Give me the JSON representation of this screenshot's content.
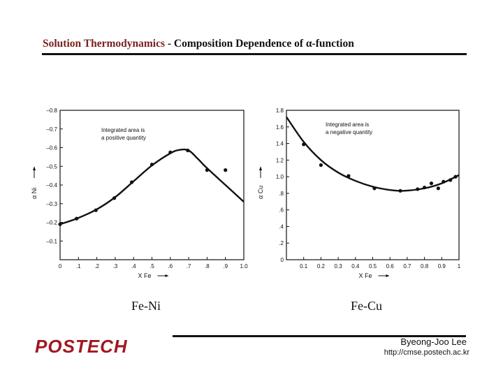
{
  "header": {
    "title_main": "Solution Thermodynamics",
    "title_rest": " - Composition Dependence of  α-function"
  },
  "chart_data": [
    {
      "type": "scatter",
      "caption": "Fe-Ni",
      "annotation": [
        "Integrated area is",
        "a positive quantity"
      ],
      "ylabel": "α Ni",
      "xlabel": "X Fe",
      "xlim": [
        0,
        1.0
      ],
      "ylim": [
        -0.8,
        0
      ],
      "xticks": [
        "0",
        ".1",
        ".2",
        ".3",
        ".4",
        ".5",
        ".6",
        ".7",
        ".8",
        ".9",
        "1.0"
      ],
      "yticks": [
        "–0.8",
        "–0.7",
        "–0.6",
        "–0.5",
        "–0.4",
        "–0.3",
        "–0.2",
        "–0.1"
      ],
      "points": [
        [
          0.0,
          -0.19
        ],
        [
          0.09,
          -0.22
        ],
        [
          0.195,
          -0.265
        ],
        [
          0.295,
          -0.33
        ],
        [
          0.39,
          -0.415
        ],
        [
          0.5,
          -0.51
        ],
        [
          0.6,
          -0.575
        ],
        [
          0.695,
          -0.585
        ],
        [
          0.8,
          -0.48
        ],
        [
          0.9,
          -0.48
        ]
      ],
      "curve": [
        [
          0.0,
          -0.19
        ],
        [
          0.09,
          -0.22
        ],
        [
          0.2,
          -0.27
        ],
        [
          0.3,
          -0.335
        ],
        [
          0.4,
          -0.42
        ],
        [
          0.5,
          -0.505
        ],
        [
          0.6,
          -0.57
        ],
        [
          0.65,
          -0.588
        ],
        [
          0.7,
          -0.585
        ],
        [
          0.75,
          -0.54
        ],
        [
          0.8,
          -0.49
        ],
        [
          0.9,
          -0.4
        ],
        [
          1.0,
          -0.31
        ]
      ]
    },
    {
      "type": "scatter",
      "caption": "Fe-Cu",
      "annotation": [
        "Integrated area is",
        "a negative quantity"
      ],
      "ylabel": "α Cu",
      "xlabel": "X Fe",
      "xlim": [
        0,
        1
      ],
      "ylim": [
        0,
        1.8
      ],
      "xticks": [
        "0.1",
        "0.2",
        "0.3",
        "0.4",
        "0.5",
        "0.6",
        "0.7",
        "0.8",
        "0.9",
        "1"
      ],
      "yticks": [
        "1.8",
        "1.6",
        "1.4",
        "1.2",
        "1.0",
        ".8",
        ".6",
        ".4",
        ".2",
        "0"
      ],
      "points": [
        [
          0.1,
          1.39
        ],
        [
          0.2,
          1.14
        ],
        [
          0.36,
          1.01
        ],
        [
          0.51,
          0.86
        ],
        [
          0.66,
          0.83
        ],
        [
          0.76,
          0.85
        ],
        [
          0.8,
          0.87
        ],
        [
          0.84,
          0.92
        ],
        [
          0.88,
          0.86
        ],
        [
          0.91,
          0.94
        ],
        [
          0.95,
          0.96
        ],
        [
          0.98,
          1.0
        ]
      ],
      "curve": [
        [
          0.0,
          1.72
        ],
        [
          0.1,
          1.42
        ],
        [
          0.2,
          1.2
        ],
        [
          0.3,
          1.05
        ],
        [
          0.4,
          0.95
        ],
        [
          0.5,
          0.88
        ],
        [
          0.6,
          0.84
        ],
        [
          0.68,
          0.83
        ],
        [
          0.8,
          0.86
        ],
        [
          0.9,
          0.92
        ],
        [
          1.0,
          1.02
        ]
      ]
    }
  ],
  "footer": {
    "logo_text": "POSTECH",
    "author": "Byeong-Joo Lee",
    "url": "http://cmse.postech.ac.kr"
  }
}
